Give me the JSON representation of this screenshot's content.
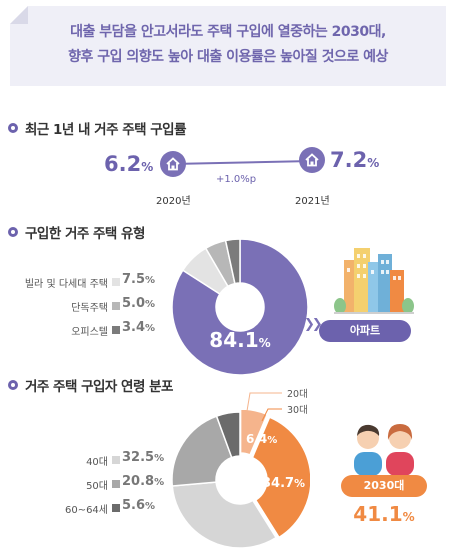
{
  "header": {
    "line1": "대출 부담을 안고서라도 주택 구입에 열중하는 2030대,",
    "line2": "향후 구입 의향도 높아 대출 이용률은 높아질 것으로 예상"
  },
  "section1": {
    "title": "최근 1년 내 거주 주택 구입률",
    "left_value": "6.2",
    "right_value": "7.2",
    "unit": "%",
    "left_year": "2020년",
    "right_year": "2021년",
    "change": "+1.0%p"
  },
  "section2": {
    "title": "구입한 거주 주택 유형",
    "center_value": "84.1",
    "unit": "%",
    "badge": "아파트",
    "legend": [
      {
        "label": "빌라 및 다세대 주택",
        "value": "7.5",
        "color": "#e3e3e3"
      },
      {
        "label": "단독주택",
        "value": "5.0",
        "color": "#b7b7b7"
      },
      {
        "label": "오피스텔",
        "value": "3.4",
        "color": "#7b7b7b"
      }
    ]
  },
  "section3": {
    "title": "거주 주택 구입자 연령 분포",
    "label_20": "20대",
    "label_30": "30대",
    "value_20": "6.4",
    "value_30": "34.7",
    "unit": "%",
    "badge": "2030대",
    "total": "41.1",
    "legend": [
      {
        "label": "40대",
        "value": "32.5",
        "color": "#d6d6d6"
      },
      {
        "label": "50대",
        "value": "20.8",
        "color": "#a8a8a8"
      },
      {
        "label": "60~64세",
        "value": "5.6",
        "color": "#6b6b6b"
      }
    ]
  },
  "colors": {
    "purple": "#6c62ad",
    "orange": "#f08a43",
    "light_orange": "#f5b48c"
  },
  "chart_data": [
    {
      "type": "line",
      "title": "최근 1년 내 거주 주택 구입률",
      "categories": [
        "2020년",
        "2021년"
      ],
      "values": [
        6.2,
        7.2
      ],
      "annotation": "+1.0%p"
    },
    {
      "type": "pie",
      "title": "구입한 거주 주택 유형",
      "categories": [
        "아파트",
        "빌라 및 다세대 주택",
        "단독주택",
        "오피스텔"
      ],
      "values": [
        84.1,
        7.5,
        5.0,
        3.4
      ],
      "colors": [
        "#7a70b6",
        "#e3e3e3",
        "#b7b7b7",
        "#7b7b7b"
      ]
    },
    {
      "type": "pie",
      "title": "거주 주택 구입자 연령 분포",
      "categories": [
        "20대",
        "30대",
        "40대",
        "50대",
        "60~64세"
      ],
      "values": [
        6.4,
        34.7,
        32.5,
        20.8,
        5.6
      ],
      "colors": [
        "#f5b48c",
        "#f08a43",
        "#d6d6d6",
        "#a8a8a8",
        "#6b6b6b"
      ]
    }
  ]
}
